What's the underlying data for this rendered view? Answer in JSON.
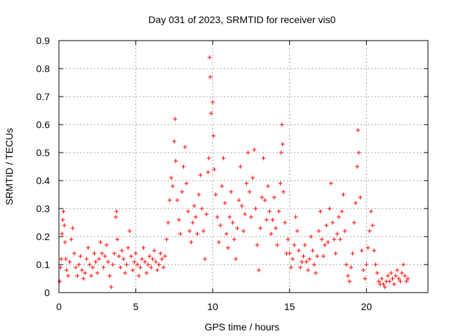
{
  "chart_data": {
    "type": "scatter",
    "title": "Day 031 of 2023, SRMTID for receiver vis0",
    "xlabel": "GPS time / hours",
    "ylabel": "SRMTID / TECUs",
    "xlim": [
      0,
      24
    ],
    "ylim": [
      0,
      0.9
    ],
    "xticks": [
      "0",
      "5",
      "10",
      "15",
      "20"
    ],
    "yticks": [
      "0",
      "0.1",
      "0.2",
      "0.3",
      "0.4",
      "0.5",
      "0.6",
      "0.7",
      "0.8",
      "0.9"
    ],
    "grid": true,
    "marker": "+",
    "series": [
      {
        "name": "vis0",
        "color": "#ff0000",
        "points": [
          [
            0.05,
            0.04
          ],
          [
            0.1,
            0.09
          ],
          [
            0.15,
            0.12
          ],
          [
            0.2,
            0.21
          ],
          [
            0.25,
            0.26
          ],
          [
            0.3,
            0.29
          ],
          [
            0.35,
            0.24
          ],
          [
            0.4,
            0.18
          ],
          [
            0.45,
            0.12
          ],
          [
            0.5,
            0.08
          ],
          [
            0.6,
            0.06
          ],
          [
            0.7,
            0.11
          ],
          [
            0.8,
            0.19
          ],
          [
            0.9,
            0.23
          ],
          [
            1.0,
            0.14
          ],
          [
            1.1,
            0.09
          ],
          [
            1.2,
            0.06
          ],
          [
            1.3,
            0.1
          ],
          [
            1.4,
            0.13
          ],
          [
            1.5,
            0.08
          ],
          [
            1.6,
            0.05
          ],
          [
            1.7,
            0.07
          ],
          [
            1.8,
            0.12
          ],
          [
            1.9,
            0.16
          ],
          [
            2.0,
            0.1
          ],
          [
            2.1,
            0.06
          ],
          [
            2.2,
            0.09
          ],
          [
            2.3,
            0.14
          ],
          [
            2.4,
            0.11
          ],
          [
            2.5,
            0.07
          ],
          [
            2.6,
            0.12
          ],
          [
            2.7,
            0.18
          ],
          [
            2.8,
            0.14
          ],
          [
            2.9,
            0.09
          ],
          [
            3.0,
            0.13
          ],
          [
            3.1,
            0.17
          ],
          [
            3.2,
            0.11
          ],
          [
            3.3,
            0.06
          ],
          [
            3.4,
            0.02
          ],
          [
            3.5,
            0.1
          ],
          [
            3.6,
            0.14
          ],
          [
            3.7,
            0.27
          ],
          [
            3.75,
            0.29
          ],
          [
            3.8,
            0.19
          ],
          [
            3.9,
            0.13
          ],
          [
            4.0,
            0.09
          ],
          [
            4.1,
            0.15
          ],
          [
            4.2,
            0.12
          ],
          [
            4.3,
            0.07
          ],
          [
            4.4,
            0.1
          ],
          [
            4.5,
            0.16
          ],
          [
            4.6,
            0.22
          ],
          [
            4.7,
            0.13
          ],
          [
            4.8,
            0.08
          ],
          [
            4.9,
            0.11
          ],
          [
            5.0,
            0.14
          ],
          [
            5.1,
            0.1
          ],
          [
            5.2,
            0.06
          ],
          [
            5.3,
            0.09
          ],
          [
            5.4,
            0.12
          ],
          [
            5.5,
            0.16
          ],
          [
            5.6,
            0.11
          ],
          [
            5.7,
            0.07
          ],
          [
            5.8,
            0.1
          ],
          [
            5.9,
            0.13
          ],
          [
            6.0,
            0.09
          ],
          [
            6.1,
            0.12
          ],
          [
            6.2,
            0.15
          ],
          [
            6.3,
            0.11
          ],
          [
            6.4,
            0.08
          ],
          [
            6.5,
            0.1
          ],
          [
            6.6,
            0.14
          ],
          [
            6.7,
            0.12
          ],
          [
            6.8,
            0.09
          ],
          [
            6.9,
            0.13
          ],
          [
            7.0,
            0.19
          ],
          [
            7.1,
            0.25
          ],
          [
            7.2,
            0.33
          ],
          [
            7.3,
            0.41
          ],
          [
            7.4,
            0.38
          ],
          [
            7.5,
            0.54
          ],
          [
            7.55,
            0.62
          ],
          [
            7.6,
            0.47
          ],
          [
            7.7,
            0.33
          ],
          [
            7.8,
            0.26
          ],
          [
            7.9,
            0.21
          ],
          [
            8.0,
            0.36
          ],
          [
            8.1,
            0.45
          ],
          [
            8.2,
            0.52
          ],
          [
            8.3,
            0.39
          ],
          [
            8.4,
            0.29
          ],
          [
            8.5,
            0.22
          ],
          [
            8.6,
            0.18
          ],
          [
            8.7,
            0.25
          ],
          [
            8.8,
            0.31
          ],
          [
            8.9,
            0.27
          ],
          [
            9.0,
            0.21
          ],
          [
            9.1,
            0.35
          ],
          [
            9.2,
            0.42
          ],
          [
            9.3,
            0.3
          ],
          [
            9.4,
            0.22
          ],
          [
            9.5,
            0.12
          ],
          [
            9.6,
            0.28
          ],
          [
            9.7,
            0.43
          ],
          [
            9.75,
            0.48
          ],
          [
            9.8,
            0.84
          ],
          [
            9.85,
            0.77
          ],
          [
            9.9,
            0.64
          ],
          [
            10.0,
            0.68
          ],
          [
            10.05,
            0.56
          ],
          [
            10.1,
            0.44
          ],
          [
            10.2,
            0.35
          ],
          [
            10.3,
            0.27
          ],
          [
            10.4,
            0.18
          ],
          [
            10.5,
            0.24
          ],
          [
            10.6,
            0.38
          ],
          [
            10.7,
            0.48
          ],
          [
            10.8,
            0.32
          ],
          [
            10.9,
            0.21
          ],
          [
            11.0,
            0.16
          ],
          [
            11.1,
            0.27
          ],
          [
            11.2,
            0.36
          ],
          [
            11.3,
            0.25
          ],
          [
            11.4,
            0.19
          ],
          [
            11.5,
            0.12
          ],
          [
            11.6,
            0.23
          ],
          [
            11.7,
            0.33
          ],
          [
            11.8,
            0.45
          ],
          [
            11.9,
            0.31
          ],
          [
            12.0,
            0.22
          ],
          [
            12.1,
            0.28
          ],
          [
            12.2,
            0.39
          ],
          [
            12.3,
            0.5
          ],
          [
            12.4,
            0.36
          ],
          [
            12.5,
            0.27
          ],
          [
            12.6,
            0.41
          ],
          [
            12.7,
            0.51
          ],
          [
            12.8,
            0.3
          ],
          [
            12.9,
            0.17
          ],
          [
            13.0,
            0.08
          ],
          [
            13.1,
            0.23
          ],
          [
            13.2,
            0.34
          ],
          [
            13.3,
            0.48
          ],
          [
            13.4,
            0.33
          ],
          [
            13.5,
            0.26
          ],
          [
            13.6,
            0.38
          ],
          [
            13.7,
            0.29
          ],
          [
            13.8,
            0.21
          ],
          [
            13.9,
            0.26
          ],
          [
            14.0,
            0.34
          ],
          [
            14.1,
            0.23
          ],
          [
            14.2,
            0.17
          ],
          [
            14.3,
            0.29
          ],
          [
            14.4,
            0.39
          ],
          [
            14.45,
            0.5
          ],
          [
            14.5,
            0.6
          ],
          [
            14.55,
            0.53
          ],
          [
            14.6,
            0.36
          ],
          [
            14.7,
            0.25
          ],
          [
            14.8,
            0.14
          ],
          [
            14.9,
            0.19
          ],
          [
            15.0,
            0.14
          ],
          [
            15.1,
            0.09
          ],
          [
            15.2,
            0.12
          ],
          [
            15.3,
            0.17
          ],
          [
            15.4,
            0.27
          ],
          [
            15.5,
            0.22
          ],
          [
            15.6,
            0.15
          ],
          [
            15.7,
            0.09
          ],
          [
            15.8,
            0.11
          ],
          [
            15.9,
            0.13
          ],
          [
            16.0,
            0.17
          ],
          [
            16.1,
            0.11
          ],
          [
            16.2,
            0.08
          ],
          [
            16.3,
            0.12
          ],
          [
            16.4,
            0.2
          ],
          [
            16.5,
            0.15
          ],
          [
            16.6,
            0.1
          ],
          [
            16.7,
            0.07
          ],
          [
            16.8,
            0.13
          ],
          [
            16.9,
            0.22
          ],
          [
            17.0,
            0.29
          ],
          [
            17.1,
            0.19
          ],
          [
            17.2,
            0.13
          ],
          [
            17.3,
            0.17
          ],
          [
            17.4,
            0.24
          ],
          [
            17.5,
            0.18
          ],
          [
            17.6,
            0.3
          ],
          [
            17.7,
            0.39
          ],
          [
            17.8,
            0.25
          ],
          [
            17.9,
            0.19
          ],
          [
            18.0,
            0.14
          ],
          [
            18.1,
            0.21
          ],
          [
            18.2,
            0.27
          ],
          [
            18.3,
            0.19
          ],
          [
            18.4,
            0.29
          ],
          [
            18.5,
            0.35
          ],
          [
            18.6,
            0.22
          ],
          [
            18.7,
            0.1
          ],
          [
            18.8,
            0.06
          ],
          [
            18.9,
            0.04
          ],
          [
            19.0,
            0.09
          ],
          [
            19.1,
            0.14
          ],
          [
            19.2,
            0.25
          ],
          [
            19.3,
            0.32
          ],
          [
            19.4,
            0.45
          ],
          [
            19.45,
            0.58
          ],
          [
            19.5,
            0.5
          ],
          [
            19.6,
            0.34
          ],
          [
            19.7,
            0.15
          ],
          [
            19.8,
            0.08
          ],
          [
            19.9,
            0.05
          ],
          [
            20.0,
            0.1
          ],
          [
            20.1,
            0.16
          ],
          [
            20.2,
            0.22
          ],
          [
            20.3,
            0.29
          ],
          [
            20.4,
            0.24
          ],
          [
            20.5,
            0.15
          ],
          [
            20.6,
            0.1
          ],
          [
            20.7,
            0.07
          ],
          [
            20.8,
            0.04
          ],
          [
            20.9,
            0.03
          ],
          [
            21.0,
            0.05
          ],
          [
            21.1,
            0.03
          ],
          [
            21.2,
            0.02
          ],
          [
            21.3,
            0.04
          ],
          [
            21.4,
            0.06
          ],
          [
            21.5,
            0.04
          ],
          [
            21.6,
            0.07
          ],
          [
            21.7,
            0.05
          ],
          [
            21.8,
            0.03
          ],
          [
            21.9,
            0.06
          ],
          [
            22.0,
            0.08
          ],
          [
            22.1,
            0.05
          ],
          [
            22.2,
            0.04
          ],
          [
            22.3,
            0.07
          ],
          [
            22.4,
            0.1
          ],
          [
            22.5,
            0.06
          ],
          [
            22.6,
            0.04
          ],
          [
            22.7,
            0.05
          ]
        ]
      }
    ]
  }
}
